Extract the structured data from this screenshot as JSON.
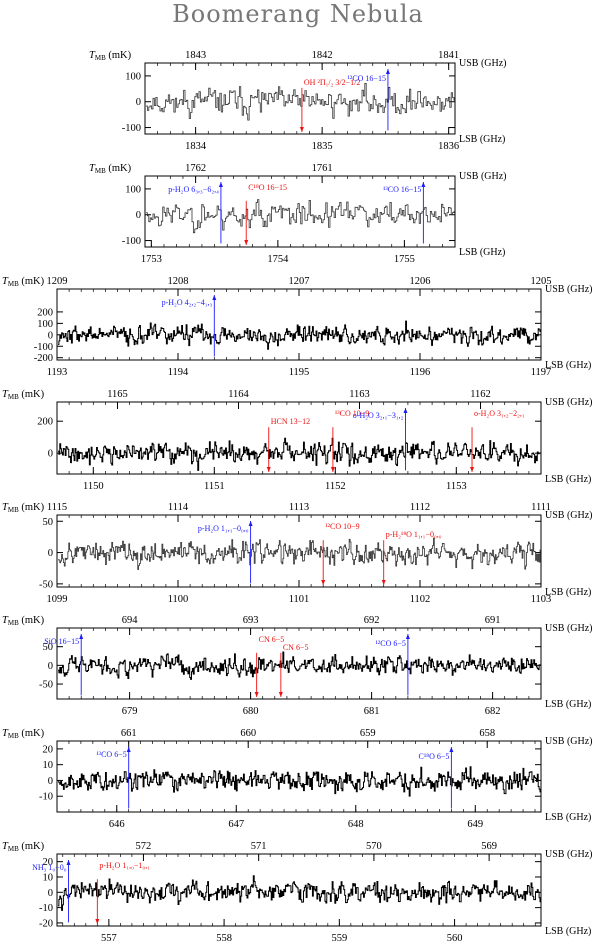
{
  "title": "Boomerang Nebula",
  "colors": {
    "blue": "#1a1aff",
    "red": "#ee1111",
    "axis": "#000000",
    "title": "#777777"
  },
  "axis_labels": {
    "ylabel": "T",
    "ysub": "MB",
    "yunit": " (mK)",
    "usb": "USB (GHz)",
    "lsb": "LSB (GHz)"
  },
  "chart_data": [
    {
      "type": "line",
      "lsb_range": [
        1833.6,
        1836.05
      ],
      "usb_range": [
        1843.4,
        1840.95
      ],
      "ylim": [
        -125,
        150
      ],
      "lsb_ticks": [
        "1834",
        "1835",
        "1836"
      ],
      "usb_ticks": [
        "1843",
        "1842",
        "1841"
      ],
      "yticks": [
        "-100",
        "0",
        "100"
      ],
      "rms": 45,
      "seed": 11,
      "lines": [
        {
          "label": "OH ²Π₁/₂ 3/2−1/2",
          "freq": 1834.84,
          "color": "red",
          "dir": "down"
        },
        {
          "label": "¹²CO 16−15",
          "freq": 1835.52,
          "color": "blue",
          "dir": "up"
        }
      ]
    },
    {
      "type": "line",
      "lsb_range": [
        1752.95,
        1755.4
      ],
      "usb_range": [
        1762.4,
        1759.95
      ],
      "ylim": [
        -125,
        150
      ],
      "lsb_ticks": [
        "1753",
        "1754",
        "1755"
      ],
      "usb_ticks": [
        "1762",
        "1761"
      ],
      "yticks": [
        "-100",
        "0",
        "100"
      ],
      "rms": 45,
      "seed": 23,
      "lines": [
        {
          "label": "p-H₂O 6₃,₃−6₂,₄",
          "freq": 1753.55,
          "color": "blue",
          "dir": "up"
        },
        {
          "label": "C¹⁸O 16−15",
          "freq": 1753.75,
          "color": "red",
          "dir": "down"
        },
        {
          "label": "¹³CO 16−15",
          "freq": 1755.15,
          "color": "blue",
          "dir": "up"
        }
      ]
    },
    {
      "type": "line",
      "lsb_range": [
        1193,
        1197
      ],
      "usb_range": [
        1209,
        1205
      ],
      "ylim": [
        -220,
        400
      ],
      "lsb_ticks": [
        "1193",
        "1194",
        "1195",
        "1196",
        "1197"
      ],
      "usb_ticks": [
        "1209",
        "1208",
        "1207",
        "1206",
        "1205"
      ],
      "yticks": [
        "-200",
        "-100",
        "0",
        "100",
        "200"
      ],
      "rms": 70,
      "seed": 37,
      "lines": [
        {
          "label": "p-H₂O 4₂,₂−4₁,₃",
          "freq": 1194.3,
          "color": "blue",
          "dir": "up"
        }
      ]
    },
    {
      "type": "line",
      "lsb_range": [
        1149.7,
        1153.7
      ],
      "usb_range": [
        1165.5,
        1161.5
      ],
      "ylim": [
        -130,
        320
      ],
      "lsb_ticks": [
        "1150",
        "1151",
        "1152",
        "1153"
      ],
      "usb_ticks": [
        "1165",
        "1164",
        "1163",
        "1162"
      ],
      "yticks": [
        "0",
        "200"
      ],
      "rms": 55,
      "seed": 41,
      "lines": [
        {
          "label": "HCN 13−12",
          "freq": 1151.45,
          "color": "red",
          "dir": "down"
        },
        {
          "label": "¹³CO 10−9",
          "freq": 1151.98,
          "color": "red",
          "dir": "down"
        },
        {
          "label": "o-H₂O 3₂,₁−3₁,₂",
          "freq": 1152.58,
          "color": "blue",
          "dir": "up"
        },
        {
          "label": "o-H₂O 3₁,₂−2₂,₁",
          "freq": 1153.13,
          "color": "red",
          "dir": "down"
        }
      ]
    },
    {
      "type": "line",
      "lsb_range": [
        1099,
        1103
      ],
      "usb_range": [
        1115,
        1111
      ],
      "ylim": [
        -55,
        60
      ],
      "lsb_ticks": [
        "1099",
        "1100",
        "1101",
        "1102",
        "1103"
      ],
      "usb_ticks": [
        "1115",
        "1114",
        "1113",
        "1112",
        "1111"
      ],
      "yticks": [
        "-50",
        "0",
        "50"
      ],
      "rms": 16,
      "seed": 53,
      "lines": [
        {
          "label": "p-H₂O 1₁,₁−0₀,₀",
          "freq": 1100.6,
          "color": "blue",
          "dir": "up"
        },
        {
          "label": "¹²CO 10−9",
          "freq": 1101.2,
          "color": "red",
          "dir": "down"
        },
        {
          "label": "p-H₂¹⁸O 1₁,₁−0₀,₀",
          "freq": 1101.7,
          "color": "red",
          "dir": "down"
        }
      ]
    },
    {
      "type": "line",
      "lsb_range": [
        678.4,
        682.4
      ],
      "usb_range": [
        694.6,
        690.6
      ],
      "ylim": [
        -90,
        100
      ],
      "lsb_ticks": [
        "679",
        "680",
        "681",
        "682"
      ],
      "usb_ticks": [
        "694",
        "693",
        "692",
        "691"
      ],
      "yticks": [
        "-50",
        "0",
        "50"
      ],
      "rms": 22,
      "seed": 67,
      "lines": [
        {
          "label": "SiO 16−15",
          "freq": 678.6,
          "color": "blue",
          "dir": "up"
        },
        {
          "label": "CN 6−5",
          "freq": 680.05,
          "color": "red",
          "dir": "down"
        },
        {
          "label": "CN 6−5",
          "freq": 680.25,
          "color": "red",
          "dir": "down"
        },
        {
          "label": "¹²CO 6−5",
          "freq": 681.3,
          "color": "blue",
          "dir": "up"
        }
      ]
    },
    {
      "type": "line",
      "lsb_range": [
        645.5,
        649.55
      ],
      "usb_range": [
        661.6,
        657.55
      ],
      "ylim": [
        -20,
        25
      ],
      "lsb_ticks": [
        "646",
        "647",
        "648",
        "649"
      ],
      "usb_ticks": [
        "661",
        "660",
        "659",
        "658"
      ],
      "yticks": [
        "-10",
        "0",
        "10",
        "20"
      ],
      "rms": 6,
      "seed": 79,
      "lines": [
        {
          "label": "¹³CO 6−5",
          "freq": 646.1,
          "color": "blue",
          "dir": "up"
        },
        {
          "label": "C¹⁸O 6−5",
          "freq": 648.8,
          "color": "blue",
          "dir": "up"
        }
      ]
    },
    {
      "type": "line",
      "lsb_range": [
        556.55,
        560.75
      ],
      "usb_range": [
        572.75,
        568.55
      ],
      "ylim": [
        -22,
        25
      ],
      "lsb_ticks": [
        "557",
        "558",
        "559",
        "560"
      ],
      "usb_ticks": [
        "572",
        "571",
        "570",
        "569"
      ],
      "yticks": [
        "-20",
        "-10",
        "0",
        "10",
        "20"
      ],
      "rms": 6,
      "seed": 97,
      "lines": [
        {
          "label": "NH₃ 1₀−0₀",
          "freq": 556.65,
          "color": "blue",
          "dir": "up"
        },
        {
          "label": "p-H₂O 1₁,₀−1₀,₁",
          "freq": 556.9,
          "color": "red",
          "dir": "down"
        }
      ]
    }
  ]
}
